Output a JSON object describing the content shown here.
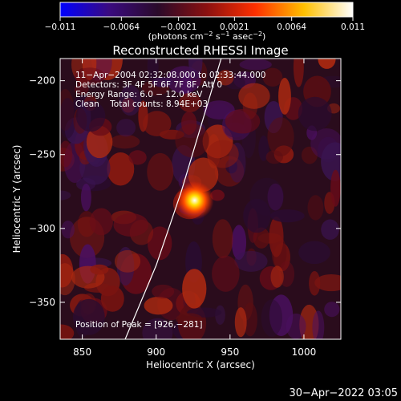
{
  "chart_data": {
    "type": "heatmap",
    "title": "Reconstructed RHESSI Image",
    "colorbar": {
      "ticks": [
        "−0.011",
        "−0.0064",
        "−0.0021",
        "0.0021",
        "0.0064",
        "0.011"
      ],
      "tick_values": [
        -0.011,
        -0.0064,
        -0.0021,
        0.0021,
        0.0064,
        0.011
      ],
      "range": [
        -0.011,
        0.011
      ],
      "unit_parts": [
        "(photons cm",
        "−2",
        " s",
        "−1",
        " asec",
        "−2",
        ")"
      ],
      "colors": [
        "#0000ff",
        "#3a0a80",
        "#2a0a2a",
        "#8a1010",
        "#ff3000",
        "#ffc000",
        "#ffffff"
      ]
    },
    "xlabel": "Heliocentric X (arcsec)",
    "ylabel": "Heliocentric Y (arcsec)",
    "xlim": [
      835,
      1025
    ],
    "ylim": [
      -375,
      -185
    ],
    "xticks": [
      850,
      900,
      950,
      1000
    ],
    "xtick_labels": [
      "850",
      "900",
      "950",
      "1000"
    ],
    "yticks": [
      -200,
      -250,
      -300,
      -350
    ],
    "ytick_labels": [
      "−200",
      "−250",
      "−300",
      "−350"
    ],
    "info_lines": [
      "11−Apr−2004 02:32:08.000 to 02:33:44.000",
      "Detectors: 3F 4F 5F 6F 7F 8F, Att 0",
      "Energy Range: 6.0 − 12.0 keV",
      "Clean    Total counts: 8.94E+03"
    ],
    "peak_label": "Position of Peak = [926,−281]",
    "peak": [
      926,
      -281
    ],
    "limb_curve": [
      [
        879,
        -375
      ],
      [
        900,
        -325
      ],
      [
        917,
        -275
      ],
      [
        932,
        -225
      ],
      [
        944,
        -185
      ]
    ],
    "timestamp": "30−Apr−2022 03:05"
  }
}
